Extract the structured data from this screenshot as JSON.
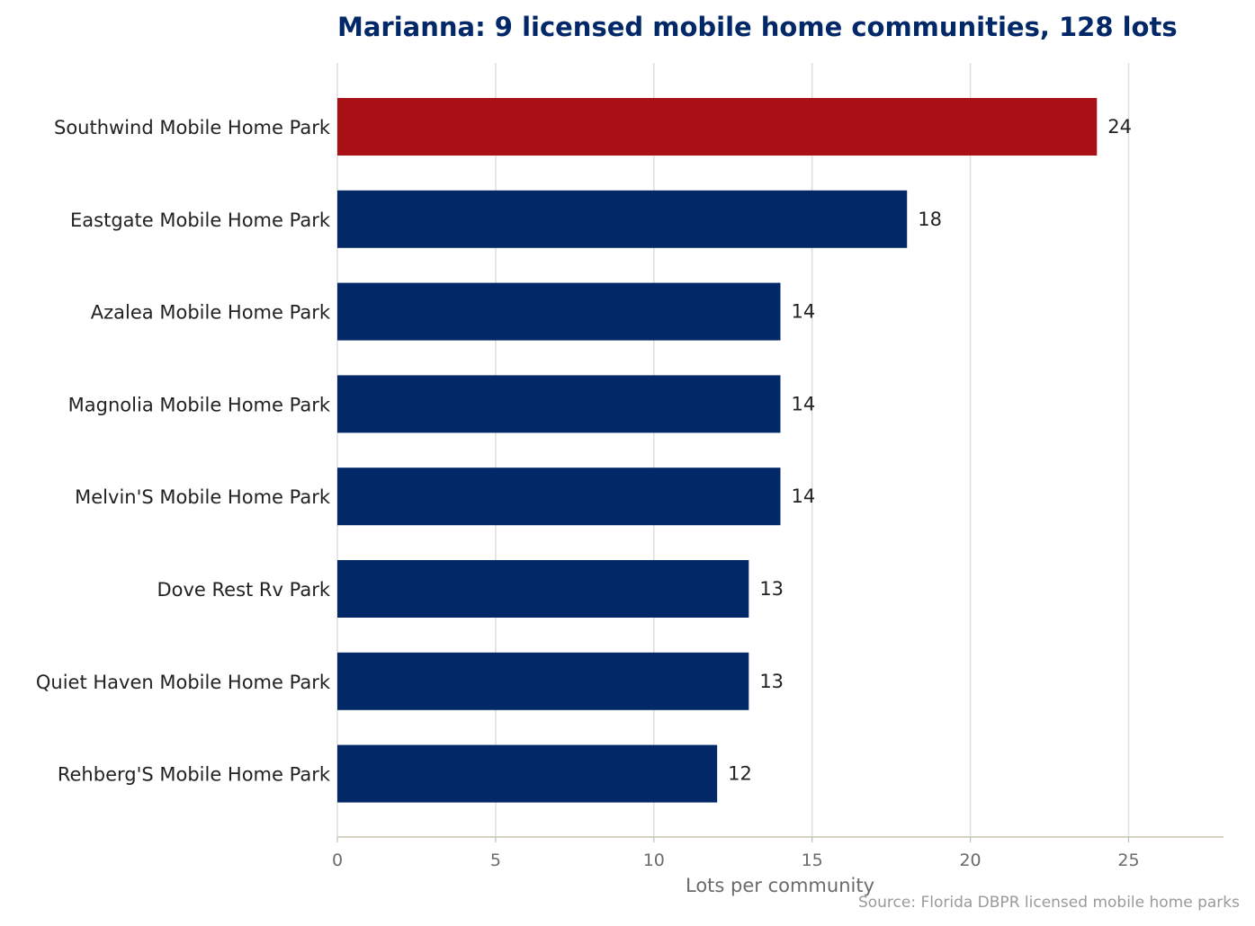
{
  "chart_data": {
    "type": "bar",
    "orientation": "horizontal",
    "title": "Marianna: 9 licensed mobile home communities, 128 lots",
    "xlabel": "Lots per community",
    "ylabel": "",
    "xlim": [
      0,
      28
    ],
    "xticks": [
      0,
      5,
      10,
      15,
      20,
      25
    ],
    "grid": "vertical",
    "categories": [
      "Southwind Mobile Home Park",
      "Eastgate Mobile Home Park",
      "Azalea Mobile Home Park",
      "Magnolia Mobile Home Park",
      "Melvin'S Mobile Home Park",
      "Dove Rest Rv Park",
      "Quiet Haven Mobile Home Park",
      "Rehberg'S Mobile Home Park"
    ],
    "values": [
      24,
      18,
      14,
      14,
      14,
      13,
      13,
      12
    ],
    "highlight_index": 0,
    "colors": {
      "highlight": "#a81016",
      "bar": "#022868",
      "grid": "#dddddd",
      "axis": "#d6d2c4"
    },
    "source": "Source: Florida DBPR licensed mobile home parks"
  }
}
